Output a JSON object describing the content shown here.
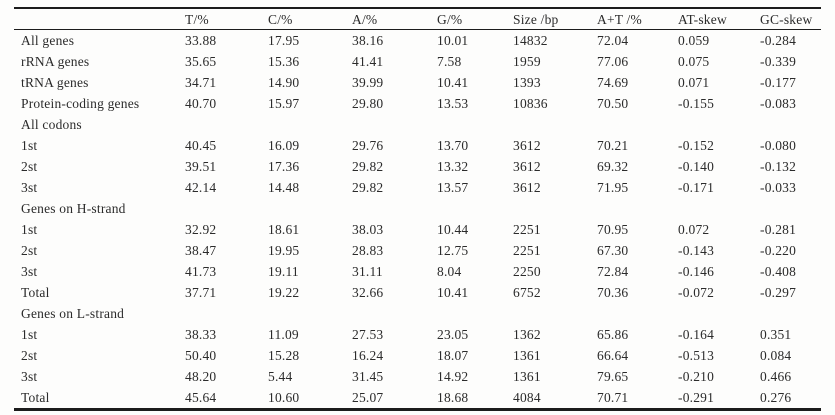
{
  "table": {
    "name": "nucleotide-composition-table",
    "columns": [
      "",
      "T/%",
      "C/%",
      "A/%",
      "G/%",
      "Size /bp",
      "A+T /%",
      "AT-skew",
      "GC-skew"
    ],
    "rows": [
      {
        "type": "data",
        "label": "All genes",
        "values": [
          "33.88",
          "17.95",
          "38.16",
          "10.01",
          "14832",
          "72.04",
          "0.059",
          "-0.284"
        ]
      },
      {
        "type": "data",
        "label": "rRNA genes",
        "values": [
          "35.65",
          "15.36",
          "41.41",
          "7.58",
          "1959",
          "77.06",
          "0.075",
          "-0.339"
        ]
      },
      {
        "type": "data",
        "label": "tRNA genes",
        "values": [
          "34.71",
          "14.90",
          "39.99",
          "10.41",
          "1393",
          "74.69",
          "0.071",
          "-0.177"
        ]
      },
      {
        "type": "data",
        "label": "Protein-coding genes",
        "values": [
          "40.70",
          "15.97",
          "29.80",
          "13.53",
          "10836",
          "70.50",
          "-0.155",
          "-0.083"
        ]
      },
      {
        "type": "section",
        "label": "All codons",
        "values": [
          "",
          "",
          "",
          "",
          "",
          "",
          "",
          ""
        ]
      },
      {
        "type": "data",
        "label": "1st",
        "values": [
          "40.45",
          "16.09",
          "29.76",
          "13.70",
          "3612",
          "70.21",
          "-0.152",
          "-0.080"
        ]
      },
      {
        "type": "data",
        "label": "2st",
        "values": [
          "39.51",
          "17.36",
          "29.82",
          "13.32",
          "3612",
          "69.32",
          "-0.140",
          "-0.132"
        ]
      },
      {
        "type": "data",
        "label": "3st",
        "values": [
          "42.14",
          "14.48",
          "29.82",
          "13.57",
          "3612",
          "71.95",
          "-0.171",
          "-0.033"
        ]
      },
      {
        "type": "section",
        "label": "Genes on H-strand",
        "values": [
          "",
          "",
          "",
          "",
          "",
          "",
          "",
          ""
        ]
      },
      {
        "type": "data",
        "label": "1st",
        "values": [
          "32.92",
          "18.61",
          "38.03",
          "10.44",
          "2251",
          "70.95",
          "0.072",
          "-0.281"
        ]
      },
      {
        "type": "data",
        "label": "2st",
        "values": [
          "38.47",
          "19.95",
          "28.83",
          "12.75",
          "2251",
          "67.30",
          "-0.143",
          "-0.220"
        ]
      },
      {
        "type": "data",
        "label": "3st",
        "values": [
          "41.73",
          "19.11",
          "31.11",
          "8.04",
          "2250",
          "72.84",
          "-0.146",
          "-0.408"
        ]
      },
      {
        "type": "data",
        "label": "Total",
        "values": [
          "37.71",
          "19.22",
          "32.66",
          "10.41",
          "6752",
          "70.36",
          "-0.072",
          "-0.297"
        ]
      },
      {
        "type": "section",
        "label": "Genes on L-strand",
        "values": [
          "",
          "",
          "",
          "",
          "",
          "",
          "",
          ""
        ]
      },
      {
        "type": "data",
        "label": "1st",
        "values": [
          "38.33",
          "11.09",
          "27.53",
          "23.05",
          "1362",
          "65.86",
          "-0.164",
          "0.351"
        ]
      },
      {
        "type": "data",
        "label": "2st",
        "values": [
          "50.40",
          "15.28",
          "16.24",
          "18.07",
          "1361",
          "66.64",
          "-0.513",
          "0.084"
        ]
      },
      {
        "type": "data",
        "label": "3st",
        "values": [
          "48.20",
          "5.44",
          "31.45",
          "14.92",
          "1361",
          "79.65",
          "-0.210",
          "0.466"
        ]
      },
      {
        "type": "data",
        "label": "Total",
        "values": [
          "45.64",
          "10.60",
          "25.07",
          "18.68",
          "4084",
          "70.71",
          "-0.291",
          "0.276"
        ]
      }
    ]
  },
  "colors": {
    "text": "#2b2b2b",
    "rule": "#1c1c1c",
    "background": "#fdfdfc"
  }
}
